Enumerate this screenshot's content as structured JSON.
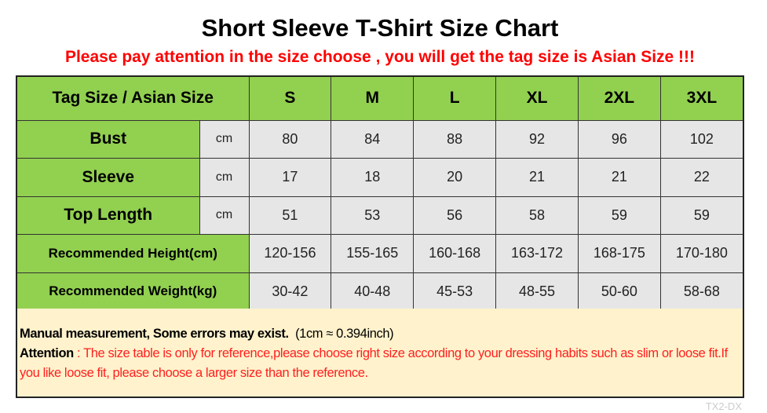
{
  "title": "Short Sleeve T-Shirt Size Chart",
  "subtitle": "Please pay attention in the size choose , you will get the tag size is Asian Size !!!",
  "table": {
    "header_label": "Tag Size / Asian Size",
    "sizes": [
      "S",
      "M",
      "L",
      "XL",
      "2XL",
      "3XL"
    ],
    "measured_rows": [
      {
        "label": "Bust",
        "unit": "cm",
        "values": [
          "80",
          "84",
          "88",
          "92",
          "96",
          "102"
        ]
      },
      {
        "label": "Sleeve",
        "unit": "cm",
        "values": [
          "17",
          "18",
          "20",
          "21",
          "21",
          "22"
        ]
      },
      {
        "label": "Top Length",
        "unit": "cm",
        "values": [
          "51",
          "53",
          "56",
          "58",
          "59",
          "59"
        ]
      }
    ],
    "recommend_rows": [
      {
        "label": "Recommended Height(cm)",
        "values": [
          "120-156",
          "155-165",
          "160-168",
          "163-172",
          "168-175",
          "170-180"
        ]
      },
      {
        "label": "Recommended Weight(kg)",
        "values": [
          "30-42",
          "40-48",
          "45-53",
          "48-55",
          "50-60",
          "58-68"
        ]
      }
    ]
  },
  "note": {
    "measure_bold": "Manual measurement, Some errors may exist.",
    "conversion": "(1cm ≈ 0.394inch)",
    "attention_label": "Attention",
    "attention_sep": " : ",
    "attention_text": "The size table is only for reference,please choose right size according to your dressing habits such as slim or loose fit.If you like loose fit, please choose a larger size than the reference."
  },
  "watermark": "TX2-DX",
  "colors": {
    "header_green": "#92d050",
    "cell_gray": "#e7e6e6",
    "note_bg": "#fff2cc",
    "warning_red": "#ff0000"
  }
}
